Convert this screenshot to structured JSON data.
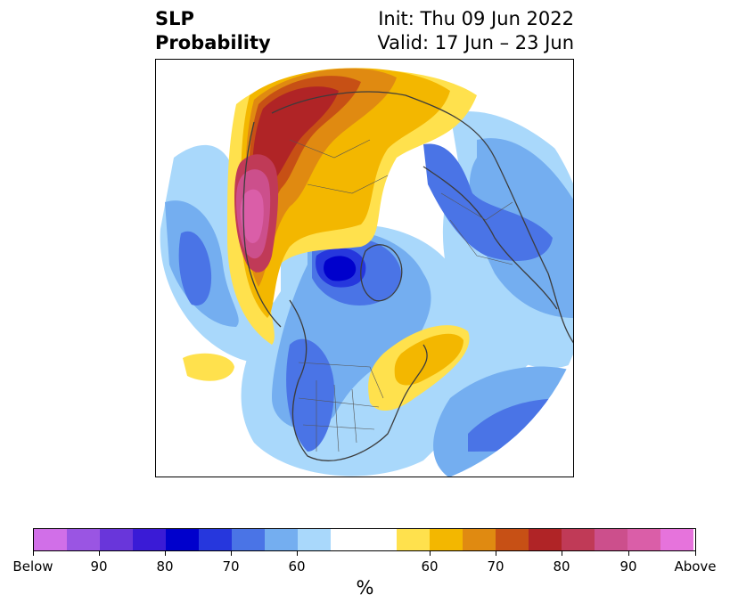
{
  "title": {
    "left_line1": "SLP",
    "left_line2": "Probability",
    "right_line1": "Init: Thu 09 Jun 2022",
    "right_line2": "Valid: 17 Jun – 23 Jun"
  },
  "colorbar": {
    "unit": "%",
    "colors": [
      "#d16fe8",
      "#9a55e3",
      "#6936da",
      "#3a1bd6",
      "#0000cc",
      "#2637dd",
      "#4a74e6",
      "#74aef0",
      "#a9d8fb",
      "#ffffff",
      "#ffe14d",
      "#f3b700",
      "#e08a11",
      "#c75015",
      "#b02426",
      "#c03a57",
      "#cc4f8c",
      "#da5ea8",
      "#e673dc"
    ],
    "tick_labels": [
      "Below",
      "90",
      "80",
      "70",
      "60",
      "60",
      "70",
      "80",
      "90",
      "Above"
    ]
  },
  "map": {
    "colors": {
      "lightblue": "#a9d8fb",
      "blue1": "#74aef0",
      "blue2": "#4a74e6",
      "blue3": "#2637dd",
      "blue4": "#0000cc",
      "yellow": "#ffe14d",
      "gold": "#f3b700",
      "orange": "#e08a11",
      "rust": "#c75015",
      "red": "#b02426",
      "rose": "#c03a57",
      "pink": "#cc4f8c",
      "magenta": "#da5ea8"
    }
  }
}
